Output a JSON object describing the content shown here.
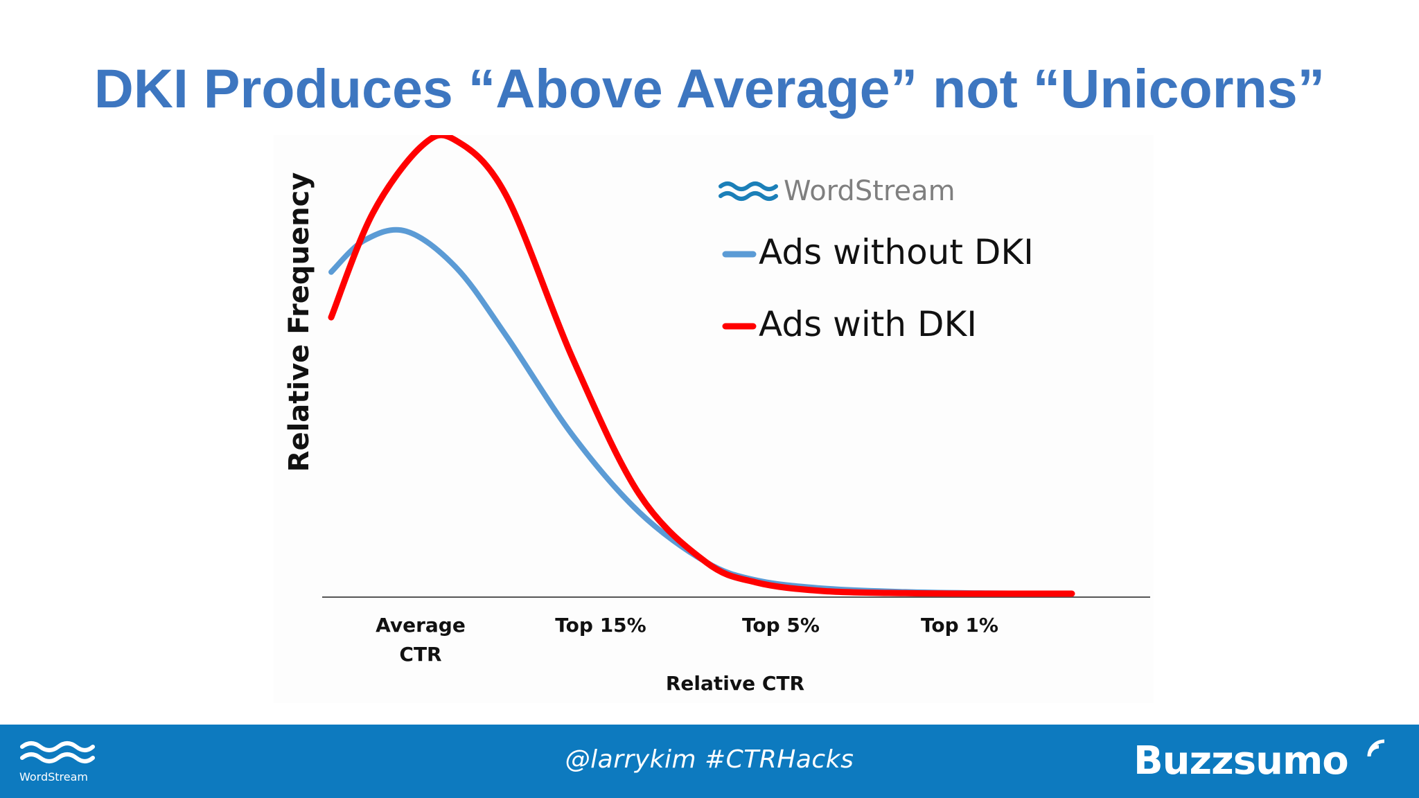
{
  "slide": {
    "title": "DKI Produces “Above Average” not “Unicorns”"
  },
  "chart_data": {
    "type": "line",
    "xlabel": "Relative CTR",
    "ylabel": "Relative Frequency",
    "x_ticks": [
      "Average\nCTR",
      "Top 15%",
      "Top 5%",
      "Top 1%"
    ],
    "x_tick_positions": [
      1,
      2,
      3,
      4
    ],
    "xlim": [
      0.5,
      5.1
    ],
    "ylim": [
      0,
      1.0
    ],
    "legend_brand": "WordStream",
    "legend_placement": "top-right",
    "grid": false,
    "series": [
      {
        "name": "Ads without DKI",
        "color": "#5b9bd5",
        "x": [
          0.55,
          0.75,
          1.0,
          1.3,
          1.6,
          2.0,
          2.4,
          2.8,
          3.1,
          3.5,
          4.0,
          4.5,
          5.0
        ],
        "y": [
          0.71,
          0.78,
          0.8,
          0.72,
          0.57,
          0.35,
          0.18,
          0.07,
          0.03,
          0.012,
          0.004,
          0.001,
          0.0
        ]
      },
      {
        "name": "Ads with DKI",
        "color": "#ff0000",
        "x": [
          0.55,
          0.8,
          1.1,
          1.3,
          1.6,
          2.0,
          2.4,
          2.8,
          3.1,
          3.5,
          4.0,
          4.5,
          5.0
        ],
        "y": [
          0.61,
          0.84,
          0.99,
          1.0,
          0.88,
          0.52,
          0.22,
          0.07,
          0.025,
          0.006,
          0.001,
          0.0,
          0.0
        ]
      }
    ]
  },
  "footer": {
    "handle": "@larrykim #CTRHacks",
    "left_logo": "WordStream",
    "right_logo": "Buzzsumo",
    "background": "#0d7abf"
  }
}
